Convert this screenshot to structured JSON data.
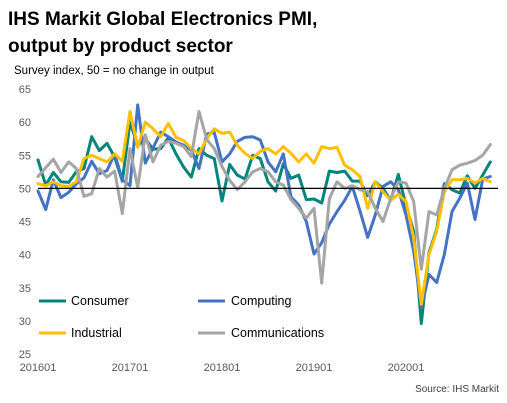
{
  "chart_data": {
    "type": "line",
    "title_lines": [
      "IHS Markit Global Electronics PMI,",
      "output by product sector"
    ],
    "subtitle": "Survey index, 50 = no change in output",
    "source": "Source: IHS Markit",
    "ylim": [
      25,
      65
    ],
    "y_ticks": [
      25,
      30,
      35,
      40,
      45,
      50,
      55,
      60,
      65
    ],
    "x_ticks": [
      "201601",
      "201701",
      "201801",
      "201901",
      "202001"
    ],
    "reference_line": 50,
    "grid": false,
    "legend_position": "bottom-left inside plot, two columns",
    "x": [
      "2016-01",
      "2016-02",
      "2016-03",
      "2016-04",
      "2016-05",
      "2016-06",
      "2016-07",
      "2016-08",
      "2016-09",
      "2016-10",
      "2016-11",
      "2016-12",
      "2017-01",
      "2017-02",
      "2017-03",
      "2017-04",
      "2017-05",
      "2017-06",
      "2017-07",
      "2017-08",
      "2017-09",
      "2017-10",
      "2017-11",
      "2017-12",
      "2018-01",
      "2018-02",
      "2018-03",
      "2018-04",
      "2018-05",
      "2018-06",
      "2018-07",
      "2018-08",
      "2018-09",
      "2018-10",
      "2018-11",
      "2018-12",
      "2019-01",
      "2019-02",
      "2019-03",
      "2019-04",
      "2019-05",
      "2019-06",
      "2019-07",
      "2019-08",
      "2019-09",
      "2019-10",
      "2019-11",
      "2019-12",
      "2020-01",
      "2020-02",
      "2020-03",
      "2020-04",
      "2020-05",
      "2020-06",
      "2020-07",
      "2020-08",
      "2020-09",
      "2020-10",
      "2020-11",
      "2020-12"
    ],
    "series": [
      {
        "name": "Consumer",
        "color": "#00857C",
        "values": [
          54.3,
          50.5,
          52.4,
          51.0,
          50.9,
          52.5,
          53.0,
          57.8,
          55.7,
          56.8,
          54.7,
          51.1,
          60.0,
          56.5,
          57.5,
          55.9,
          56.0,
          57.6,
          55.2,
          53.2,
          51.7,
          56.0,
          55.0,
          54.5,
          48.1,
          53.6,
          52.0,
          51.4,
          55.0,
          54.5,
          51.0,
          49.6,
          53.7,
          51.5,
          52.0,
          48.3,
          48.4,
          47.8,
          52.6,
          52.4,
          52.6,
          51.1,
          51.1,
          48.9,
          51.0,
          50.0,
          48.2,
          52.1,
          47.4,
          43.5,
          29.6,
          40.3,
          43.8,
          50.7,
          49.8,
          49.3,
          51.9,
          50.0,
          52.0,
          54.0
        ]
      },
      {
        "name": "Computing",
        "color": "#4472C4",
        "values": [
          49.6,
          46.8,
          51.3,
          48.6,
          49.4,
          50.7,
          51.6,
          54.1,
          52.2,
          52.7,
          55.2,
          51.3,
          50.4,
          62.6,
          53.8,
          56.1,
          58.5,
          57.8,
          57.0,
          56.5,
          55.8,
          53.0,
          58.2,
          58.4,
          54.0,
          55.2,
          57.1,
          57.7,
          57.8,
          57.3,
          54.0,
          52.5,
          55.2,
          48.7,
          47.5,
          45.0,
          40.1,
          41.8,
          44.6,
          46.5,
          48.2,
          50.3,
          46.6,
          42.6,
          46.0,
          50.3,
          51.0,
          49.8,
          46.0,
          40.5,
          32.0,
          37.0,
          35.8,
          40.0,
          46.5,
          48.5,
          50.8,
          45.3,
          51.4,
          51.8
        ]
      },
      {
        "name": "Industrial",
        "color": "#FFC000",
        "values": [
          50.7,
          50.4,
          51.0,
          50.4,
          50.3,
          51.0,
          54.5,
          55.0,
          54.5,
          54.0,
          55.2,
          54.1,
          61.6,
          56.2,
          60.0,
          59.0,
          57.8,
          59.8,
          57.7,
          57.2,
          56.0,
          55.2,
          57.5,
          59.0,
          58.3,
          58.5,
          56.5,
          55.3,
          54.5,
          55.6,
          56.0,
          55.2,
          56.3,
          55.3,
          54.0,
          55.2,
          53.8,
          56.3,
          56.0,
          56.2,
          53.5,
          52.8,
          51.8,
          47.0,
          51.0,
          49.5,
          48.2,
          49.1,
          48.0,
          42.5,
          32.5,
          40.0,
          43.5,
          49.5,
          51.3,
          51.3,
          51.5,
          50.8,
          51.5,
          51.0
        ]
      },
      {
        "name": "Communications",
        "color": "#A5A5A5",
        "values": [
          51.8,
          53.1,
          54.4,
          52.4,
          54.0,
          53.0,
          48.8,
          49.2,
          53.0,
          51.7,
          52.6,
          46.2,
          56.0,
          50.1,
          58.1,
          54.0,
          56.5,
          57.1,
          56.8,
          56.3,
          54.8,
          61.6,
          57.4,
          56.0,
          53.3,
          51.2,
          49.8,
          51.0,
          52.5,
          53.0,
          52.5,
          51.0,
          50.5,
          48.3,
          47.0,
          45.5,
          47.0,
          35.7,
          48.4,
          51.0,
          50.0,
          50.4,
          49.8,
          49.5,
          47.0,
          45.0,
          48.5,
          51.0,
          50.8,
          48.0,
          37.8,
          46.5,
          46.0,
          50.0,
          52.8,
          53.5,
          53.8,
          54.2,
          55.0,
          56.6
        ]
      }
    ]
  }
}
